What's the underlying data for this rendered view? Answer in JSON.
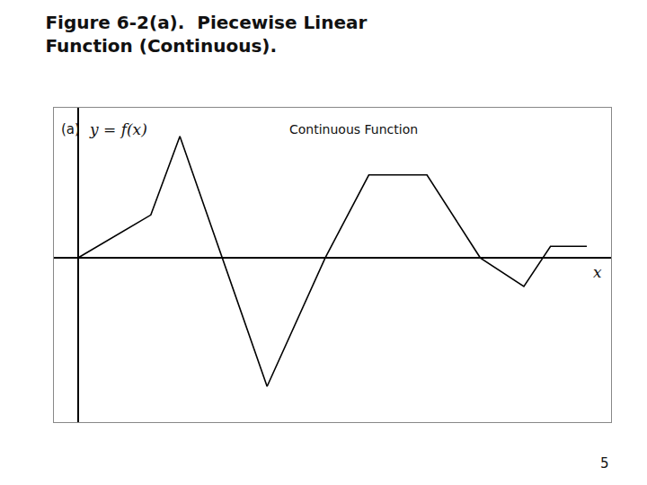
{
  "chart_data": {
    "type": "line",
    "title": "Figure 6-2(a).  Piecewise Linear",
    "subtitle": "Function (Continuous).",
    "xlabel": "x",
    "ylabel": "y = f(x)",
    "annotations": [
      "(a)",
      "Continuous Function",
      "5"
    ],
    "x": [
      0.0,
      1.5,
      2.1,
      3.9,
      5.1,
      6.0,
      7.2,
      8.3,
      9.2,
      9.75,
      10.5
    ],
    "values": [
      0.0,
      0.3,
      0.85,
      -0.9,
      0.0,
      0.58,
      0.58,
      0.0,
      -0.2,
      0.08,
      0.08
    ],
    "color": "#000000",
    "xlim": [
      -0.5,
      11.0
    ],
    "ylim": [
      -1.15,
      1.05
    ],
    "tick_labels": false,
    "grid": false
  }
}
